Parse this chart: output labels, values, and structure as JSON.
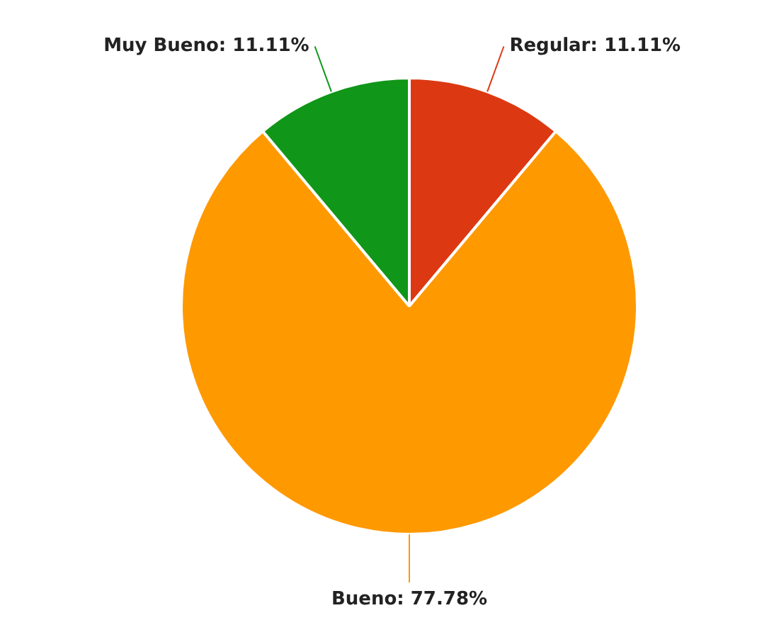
{
  "chart_data": {
    "type": "pie",
    "categories": [
      null,
      null,
      null
    ],
    "values": [
      11.11,
      77.78,
      11.11
    ],
    "colors": [
      "#dc3912",
      "#ff9900",
      "#109618"
    ],
    "value_labels": [
      "Regular: 11.11%",
      "Bueno: 77.78%",
      "Muy Bueno: 11.11%"
    ],
    "legend": false
  }
}
